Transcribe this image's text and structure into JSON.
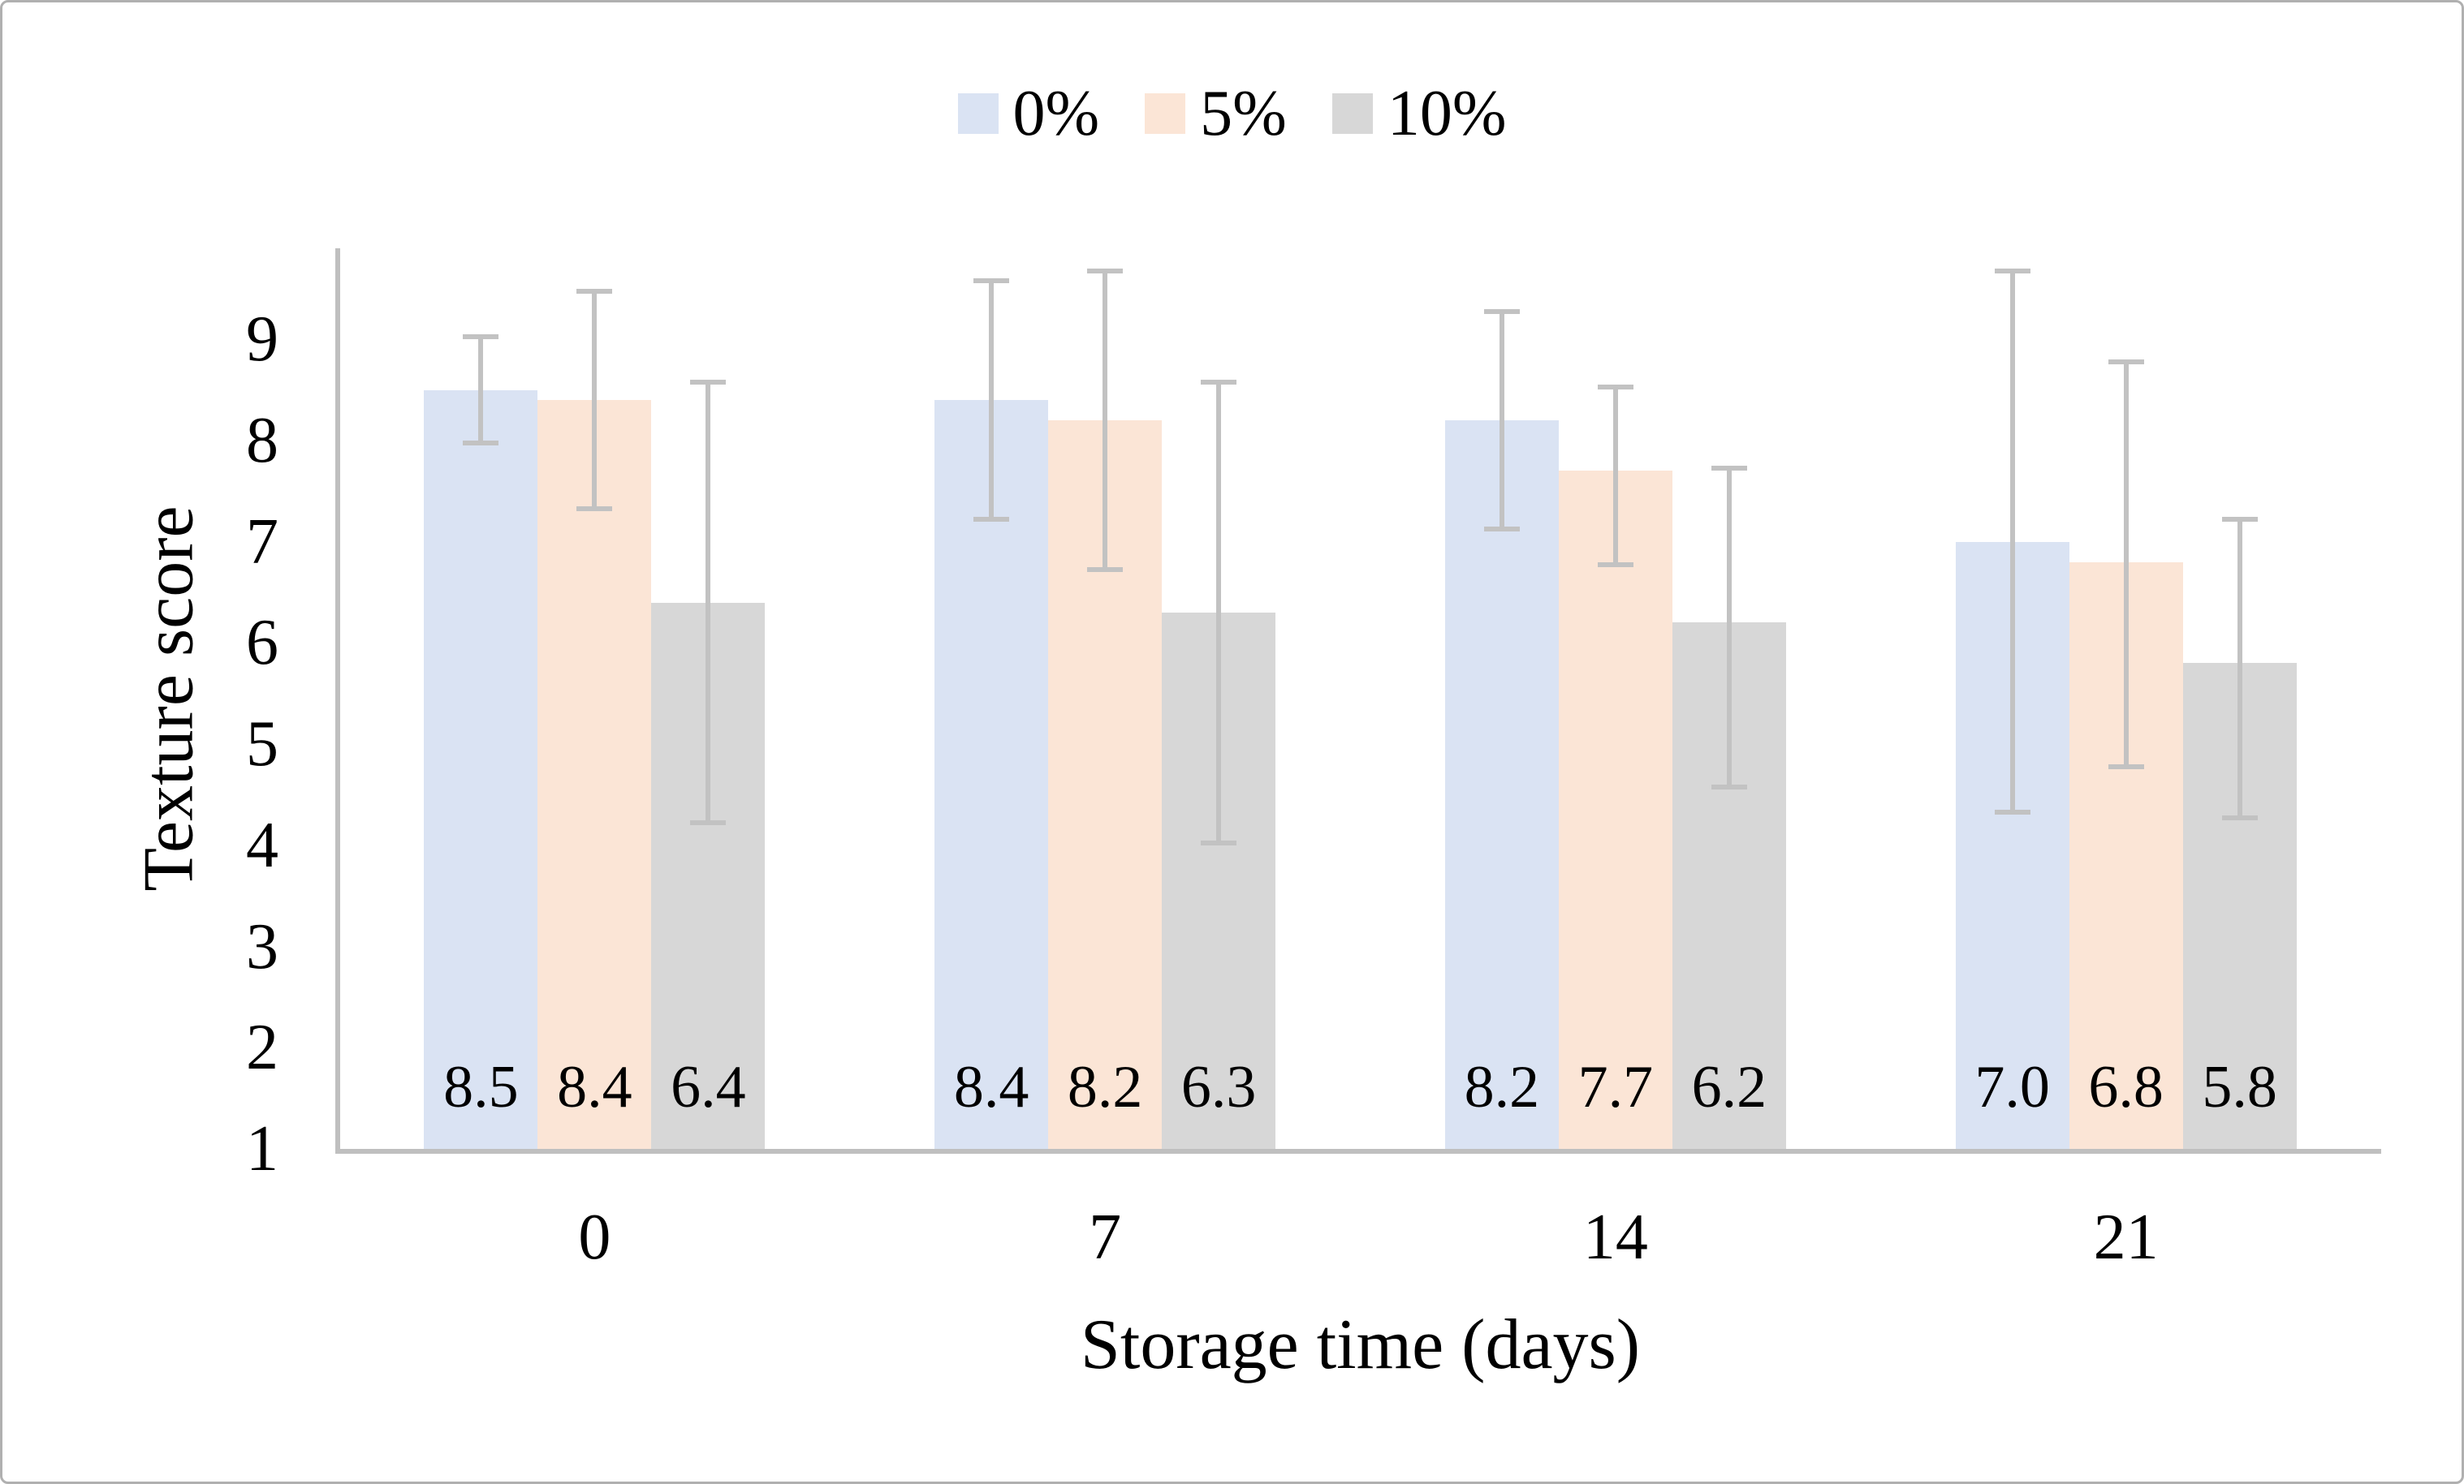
{
  "figure": {
    "background": "#ffffff",
    "border_color": "#b0b0b0"
  },
  "legend": {
    "position": "top-center",
    "items": [
      {
        "label": "0%",
        "color": "#dae3f3"
      },
      {
        "label": "5%",
        "color": "#fbe5d6"
      },
      {
        "label": "10%",
        "color": "#d7d7d7"
      }
    ]
  },
  "chart_data": {
    "type": "bar",
    "title": "",
    "xlabel": "Storage time (days)",
    "ylabel": "Texture score",
    "categories": [
      "0",
      "7",
      "14",
      "21"
    ],
    "series": [
      {
        "name": "0%",
        "color": "#dae3f3",
        "values": [
          8.5,
          8.4,
          8.2,
          7.0
        ],
        "error_low": [
          7.95,
          7.2,
          7.1,
          4.3
        ],
        "error_high": [
          9.05,
          9.6,
          9.3,
          9.7
        ]
      },
      {
        "name": "5%",
        "color": "#fbe5d6",
        "values": [
          8.4,
          8.2,
          7.7,
          6.8
        ],
        "error_low": [
          7.3,
          6.7,
          6.75,
          4.75
        ],
        "error_high": [
          9.5,
          9.7,
          8.55,
          8.8
        ]
      },
      {
        "name": "10%",
        "color": "#d7d7d7",
        "values": [
          6.4,
          6.3,
          6.2,
          5.8
        ],
        "error_low": [
          4.2,
          4.0,
          4.55,
          4.25
        ],
        "error_high": [
          8.6,
          8.6,
          7.75,
          7.25
        ]
      }
    ],
    "bar_value_labels_shown": true,
    "y_ticks": [
      "1",
      "2",
      "3",
      "4",
      "5",
      "6",
      "7",
      "8",
      "9"
    ],
    "ylim": [
      1,
      9.9
    ],
    "grid": false,
    "legend_position": "top",
    "axis_color": "#bfbfbf",
    "error_bar_color": "#c2c2c2",
    "text_color": "#000000"
  }
}
